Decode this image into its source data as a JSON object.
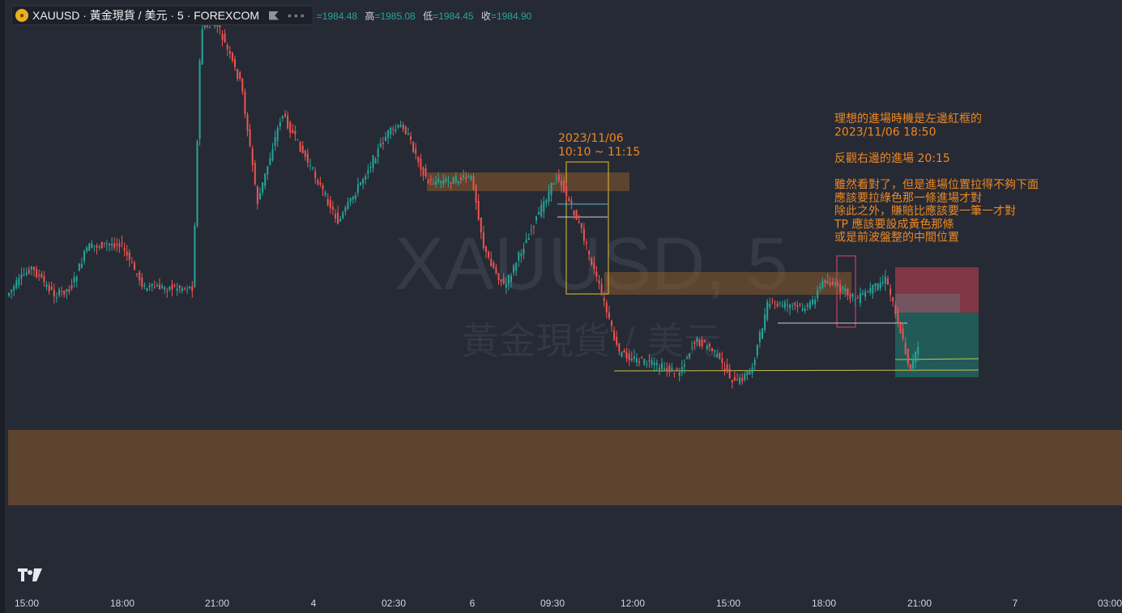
{
  "legend": {
    "title": "XAUUSD · 黃金現貨 / 美元 · 5 · FOREXCOM",
    "coin_icon": "gold-coin-icon",
    "open_label": "",
    "open_value": "=1984.48",
    "high_label": "高",
    "high_value": "=1985.08",
    "low_label": "低",
    "low_value": "=1984.45",
    "close_label": "收",
    "close_value": "=1984.90"
  },
  "watermark": {
    "line1": "XAUUSD, 5",
    "line2": "黃金現貨 / 美元"
  },
  "annotations": {
    "box_time": "2023/11/06\n10:10 ~ 11:15",
    "notes": "理想的進場時機是左邊紅框的\n2023/11/06 18:50\n\n反觀右邊的進場 20:15\n\n雖然看對了，但是進場位置拉得不夠下面\n應該要拉綠色那一條進場才對\n除此之外，賺賠比應該要一筆一才對\nTP 應該要設成黃色那條\n或是前波盤整的中間位置"
  },
  "x_axis": [
    "15:00",
    "18:00",
    "21:00",
    "4",
    "02:30",
    "6",
    "09:30",
    "12:00",
    "15:00",
    "18:00",
    "21:00",
    "7",
    "03:00"
  ],
  "colors": {
    "up": "#26a69a",
    "down": "#ef5350",
    "zone": "#8a5a2b",
    "box": "#e0c232",
    "note": "#ee8822"
  }
}
